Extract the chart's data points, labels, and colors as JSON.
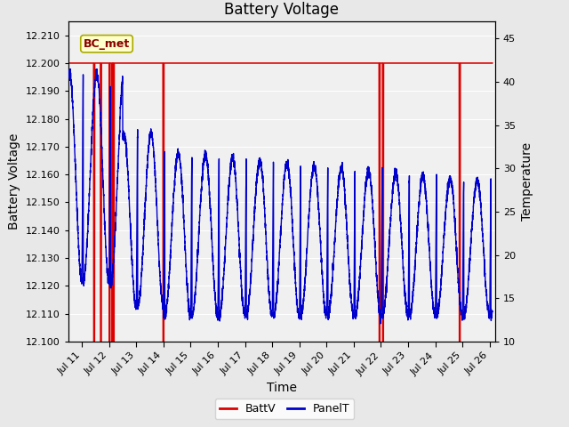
{
  "title": "Battery Voltage",
  "xlabel": "Time",
  "ylabel_left": "Battery Voltage",
  "ylabel_right": "Temperature",
  "xlim_days": [
    10.5,
    26.2
  ],
  "ylim_left": [
    12.1,
    12.215
  ],
  "ylim_right": [
    10,
    47
  ],
  "yticks_left": [
    12.1,
    12.11,
    12.12,
    12.13,
    12.14,
    12.15,
    12.16,
    12.17,
    12.18,
    12.19,
    12.2,
    12.21
  ],
  "yticks_right": [
    10,
    15,
    20,
    25,
    30,
    35,
    40,
    45
  ],
  "xtick_days": [
    11,
    12,
    13,
    14,
    15,
    16,
    17,
    18,
    19,
    20,
    21,
    22,
    23,
    24,
    25,
    26
  ],
  "xtick_labels": [
    "Jul 11",
    "Jul 12",
    "Jul 13",
    "Jul 14",
    "Jul 15",
    "Jul 16",
    "Jul 17",
    "Jul 18",
    "Jul 19",
    "Jul 20",
    "Jul 21",
    "Jul 22",
    "Jul 23",
    "Jul 24",
    "Jul 25",
    "Jul 26"
  ],
  "annotation_label": "BC_met",
  "bg_color": "#e8e8e8",
  "plot_bg_color": "#f0f0f0",
  "battv_color": "#dd0000",
  "panelt_color": "#0000cc",
  "title_fontsize": 12,
  "axis_label_fontsize": 10,
  "tick_fontsize": 8
}
